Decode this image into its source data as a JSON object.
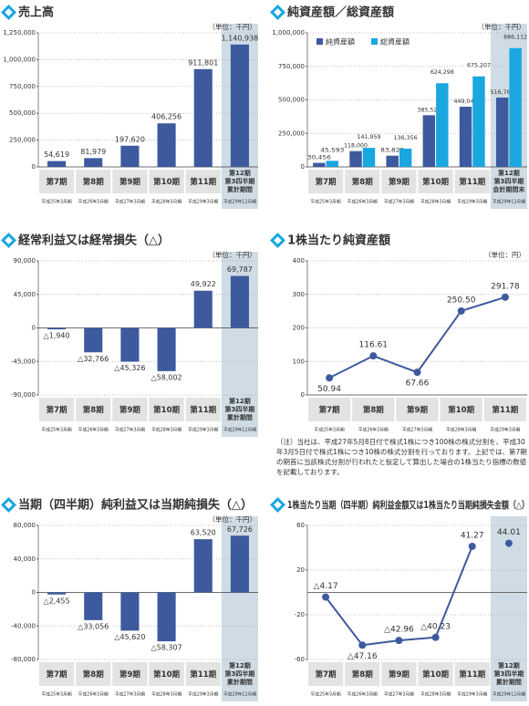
{
  "chart_data": [
    {
      "type": "bar",
      "title": "売上高",
      "unit": "（単位：千円）",
      "categories": [
        "第7期",
        "第8期",
        "第9期",
        "第10期",
        "第11期",
        "第12期\n第3四半期\n累計期間"
      ],
      "period_labels": [
        "平成25年3月期",
        "平成26年3月期",
        "平成27年3月期",
        "平成28年3月期",
        "平成29年3月期",
        "平成29年12月期"
      ],
      "values": [
        54619,
        81979,
        197620,
        406256,
        911801,
        1140938
      ],
      "value_labels": [
        "54,619",
        "81,979",
        "197,620",
        "406,256",
        "911,801",
        "1,140,938"
      ],
      "color": "#3d5a9e",
      "ylim": [
        0,
        1250000
      ],
      "yticks": [
        0,
        {
          "value": 250000,
          "label": "250,000"
        },
        {
          "value": 500000,
          "label": "500,000"
        },
        {
          "value": 750000,
          "label": "750,000"
        },
        {
          "value": 1000000,
          "label": "1,000,000"
        },
        {
          "value": 1250000,
          "label": "1,250,000"
        }
      ],
      "grid": true,
      "highlight_last": true
    },
    {
      "type": "grouped_bar",
      "title": "純資産額／総資産額",
      "unit": "（単位：千円）",
      "categories": [
        "第7期",
        "第8期",
        "第9期",
        "第10期",
        "第11期",
        "第12期\n第3四半期\n会計期間末"
      ],
      "period_labels": [
        "平成25年3月期",
        "平成26年3月期",
        "平成27年3月期",
        "平成28年3月期",
        "平成29年3月期",
        "平成29年12月期"
      ],
      "series": [
        {
          "name": "純資産額",
          "color": "#3d5a9e",
          "values": [
            30456,
            118000,
            83829,
            385522,
            449042,
            516769
          ],
          "value_labels": [
            "30,456",
            "118,000",
            "83,829",
            "385,522",
            "449,042",
            "516,769"
          ]
        },
        {
          "name": "総資産額",
          "color": "#1aa7e0",
          "values": [
            45593,
            141959,
            136356,
            624298,
            675207,
            886112
          ],
          "value_labels": [
            "45,593",
            "141,959",
            "136,356",
            "624,298",
            "675,207",
            "886,112"
          ]
        }
      ],
      "ylim": [
        0,
        1000000
      ],
      "yticks": [
        0,
        {
          "value": 250000,
          "label": "250,000"
        },
        {
          "value": 500000,
          "label": "500,000"
        },
        {
          "value": 750000,
          "label": "750,000"
        },
        {
          "value": 1000000,
          "label": "1,000,000"
        }
      ],
      "grid": true,
      "legend": "upper left",
      "highlight_last": true
    },
    {
      "type": "bar",
      "title": "経常利益又は経常損失（△）",
      "unit": "（単位：千円）",
      "categories": [
        "第7期",
        "第8期",
        "第9期",
        "第10期",
        "第11期",
        "第12期\n第3四半期\n累計期間"
      ],
      "period_labels": [
        "平成25年3月期",
        "平成26年3月期",
        "平成27年3月期",
        "平成28年3月期",
        "平成29年3月期",
        "平成29年12月期"
      ],
      "values": [
        -1940,
        -32766,
        -45326,
        -58002,
        49922,
        69787
      ],
      "value_labels": [
        "△1,940",
        "△32,766",
        "△45,326",
        "△58,002",
        "49,922",
        "69,787"
      ],
      "color": "#3d5a9e",
      "ylim": [
        -90000,
        90000
      ],
      "yticks": [
        {
          "value": -90000,
          "label": "-90,000"
        },
        {
          "value": -45000,
          "label": "-45,000"
        },
        0,
        {
          "value": 45000,
          "label": "45,000"
        },
        {
          "value": 90000,
          "label": "90,000"
        }
      ],
      "grid": true,
      "highlight_last": true
    },
    {
      "type": "line",
      "title": "1株当たり純資産額",
      "unit": "（単位：円）",
      "categories": [
        "第7期",
        "第8期",
        "第9期",
        "第10期",
        "第11期"
      ],
      "period_labels": [
        "平成25年3月期",
        "平成26年3月期",
        "平成27年3月期",
        "平成28年3月期",
        "平成29年3月期"
      ],
      "values": [
        50.94,
        116.61,
        67.66,
        250.5,
        291.78
      ],
      "value_labels": [
        "50.94",
        "116.61",
        "67.66",
        "250.50",
        "291.78"
      ],
      "color": "#3d5a9e",
      "ylim": [
        0,
        400
      ],
      "yticks": [
        0,
        100,
        200,
        300,
        400
      ],
      "grid": true,
      "note": "（注）当社は、平成27年5月8日付で株式1株につき100株の株式分割を、平成30年3月5日付で株式1株につき10株の株式分割を行っております。上記では、第7期の期首に当該株式分割が行われたと仮定して算出した場合の1株当たり指標の数値を記載しております。"
    },
    {
      "type": "bar",
      "title": "当期（四半期）純利益又は当期純損失（△）",
      "unit": "（単位：千円）",
      "categories": [
        "第7期",
        "第8期",
        "第9期",
        "第10期",
        "第11期",
        "第12期\n第3四半期\n累計期間"
      ],
      "period_labels": [
        "平成25年3月期",
        "平成26年3月期",
        "平成27年3月期",
        "平成28年3月期",
        "平成29年3月期",
        "平成29年12月期"
      ],
      "values": [
        -2455,
        -33056,
        -45620,
        -58307,
        63520,
        67726
      ],
      "value_labels": [
        "△2,455",
        "△33,056",
        "△45,620",
        "△58,307",
        "63,520",
        "67,726"
      ],
      "color": "#3d5a9e",
      "ylim": [
        -80000,
        80000
      ],
      "yticks": [
        {
          "value": -80000,
          "label": "-80,000"
        },
        {
          "value": -40000,
          "label": "-40,000"
        },
        0,
        {
          "value": 40000,
          "label": "40,000"
        },
        {
          "value": 80000,
          "label": "80,000"
        }
      ],
      "grid": true,
      "highlight_last": true
    },
    {
      "type": "line",
      "title": "1株当たり当期（四半期）純利益金額又は1株当たり当期純損失金額（△）",
      "categories": [
        "第7期",
        "第8期",
        "第9期",
        "第10期",
        "第11期",
        "第12期\n第3四半期\n累計期間"
      ],
      "period_labels": [
        "平成25年3月期",
        "平成26年3月期",
        "平成27年3月期",
        "平成28年3月期",
        "平成29年3月期",
        "平成29年12月期"
      ],
      "values": [
        -4.17,
        -47.16,
        -42.96,
        -40.23,
        41.27,
        44.01
      ],
      "value_labels": [
        "△4.17",
        "△47.16",
        "△42.96",
        "△40.23",
        "41.27",
        "44.01"
      ],
      "color": "#3d5a9e",
      "ylim": [
        -60,
        60
      ],
      "yticks": [
        -60,
        -20,
        20,
        60
      ],
      "grid": true,
      "highlight_last": true
    }
  ]
}
